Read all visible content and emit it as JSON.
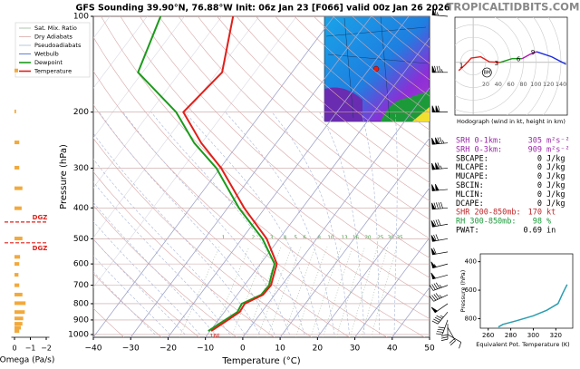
{
  "header": {
    "title": "GFS Sounding 39.90°N, 76.88°W Init: 06z Jan 23 [F066] valid 00z Jan 26 2026",
    "site": "TROPICALTIDBITS.COM"
  },
  "chart_data": [
    {
      "type": "skewt",
      "xlabel": "Temperature (°C)",
      "ylabel": "Pressure (hPa)",
      "xlim": [
        -40,
        50
      ],
      "ylim": [
        1020,
        100
      ],
      "xticks": [
        {
          "value": -40,
          "label": "−40"
        },
        {
          "value": -30,
          "label": "−30"
        },
        {
          "value": -20,
          "label": "−20"
        },
        {
          "value": -10,
          "label": "−10"
        },
        0,
        10,
        20,
        30,
        40,
        50
      ],
      "yticks": [
        100,
        200,
        300,
        400,
        500,
        600,
        700,
        800,
        900,
        1000
      ],
      "pressure": [
        975,
        925,
        850,
        800,
        750,
        700,
        650,
        600,
        500,
        400,
        300,
        250,
        200,
        150,
        100
      ],
      "series": [
        {
          "name": "Dewpoint",
          "color": "#1a9a1a",
          "values": [
            -10.5,
            -9,
            -6.5,
            -7,
            -3.6,
            -3.4,
            -4.8,
            -6.2,
            -14.5,
            -27,
            -41,
            -52,
            -63,
            -81.2,
            -86.4
          ]
        },
        {
          "name": "Temperature",
          "color": "#e0201a",
          "values": [
            -9.7,
            -8.2,
            -5.9,
            -6.2,
            -3.1,
            -2.9,
            -4.2,
            -5.6,
            -13.4,
            -25.6,
            -39.7,
            -50.1,
            -61.1,
            -58.7,
            -67
          ]
        }
      ],
      "background_lines": [
        {
          "name": "Sat. Mix. Ratio",
          "color": "#9bb89b"
        },
        {
          "name": "Dry Adiabats",
          "color": "#d8a8a8"
        },
        {
          "name": "Pseudoadiabats",
          "color": "#a9b7d8"
        },
        {
          "name": "Wetbulb",
          "color": "#3a5fcd"
        }
      ],
      "mix_ratios": [
        1,
        2,
        3,
        4,
        5,
        6,
        8,
        10,
        13,
        16,
        20,
        25,
        30,
        35
      ],
      "surface_label": "16F",
      "wind": {
        "pressure": [
          1000,
          950,
          925,
          900,
          850,
          800,
          750,
          700,
          650,
          600,
          550,
          500,
          450,
          400,
          350,
          300,
          250,
          200,
          150,
          100
        ],
        "speed": [
          10,
          20,
          30,
          40,
          45,
          50,
          45,
          45,
          50,
          55,
          60,
          70,
          80,
          90,
          100,
          115,
          125,
          110,
          85,
          65
        ],
        "direction": [
          120,
          150,
          180,
          200,
          220,
          235,
          245,
          250,
          255,
          255,
          260,
          260,
          260,
          265,
          265,
          265,
          265,
          270,
          270,
          275
        ]
      }
    },
    {
      "type": "omega",
      "xlabel": "Omega (Pa/s)",
      "xlim": [
        0.2,
        -2.2
      ],
      "xticks": [
        0,
        {
          "value": -1,
          "label": "−1"
        },
        {
          "value": -2,
          "label": "−2"
        }
      ],
      "color": "#f2a93b",
      "pressure": [
        148,
        199,
        249,
        299,
        347,
        401,
        499,
        570,
        600,
        649,
        700,
        749,
        797,
        850,
        890,
        925,
        952,
        975
      ],
      "values": [
        -0.23,
        -0.1,
        -0.3,
        -0.3,
        -0.5,
        -0.45,
        -0.5,
        -0.35,
        -0.3,
        -0.25,
        -0.3,
        -0.5,
        -0.7,
        -0.65,
        -0.55,
        -0.5,
        -0.4,
        -0.3
      ],
      "dgz": {
        "label": "DGZ",
        "pressure": [
          443,
          515
        ],
        "color": "#e0201a"
      }
    },
    {
      "type": "hodograph",
      "title": "Hodograph (wind in kt, height in km)",
      "xlim": [
        -29,
        150
      ],
      "ylim": [
        -84,
        72
      ],
      "xticks": [
        20,
        40,
        60,
        80,
        100,
        120,
        140
      ],
      "segments": [
        {
          "color": "#e0201a",
          "u": [
            -23,
            -13,
            -3,
            12,
            26,
            43
          ],
          "v": [
            -13,
            -4,
            7,
            9,
            1,
            0
          ]
        },
        {
          "color": "#1a9a1a",
          "u": [
            43,
            62,
            78
          ],
          "v": [
            0,
            6,
            6
          ]
        },
        {
          "color": "#b01ab0",
          "u": [
            78,
            91,
            101
          ],
          "v": [
            6,
            13,
            17
          ]
        },
        {
          "color": "#1a2ae0",
          "u": [
            101,
            125,
            148
          ],
          "v": [
            17,
            9,
            -3
          ]
        }
      ],
      "height_labels": [
        {
          "text": "1",
          "u": -13,
          "v": -4
        },
        {
          "text": "3",
          "u": 43,
          "v": 0
        },
        {
          "text": "6",
          "u": 78,
          "v": 6
        },
        {
          "text": "9",
          "u": 101,
          "v": 17
        }
      ],
      "storm_motion": {
        "label": "BM",
        "u": 22,
        "v": -16
      }
    },
    {
      "type": "line",
      "xlabel": "Equivalent Pot. Temperature (K)",
      "ylabel": "Pressure (hPa)",
      "xlim": [
        253,
        335
      ],
      "ylim": [
        867,
        345
      ],
      "xticks": [
        260,
        280,
        300,
        320
      ],
      "yticks": [
        400,
        600,
        800
      ],
      "color": "#2a9db0",
      "pressure": [
        859,
        840,
        815,
        780,
        741,
        694,
        624,
        560
      ],
      "values": [
        269,
        273,
        285,
        300,
        312,
        322,
        326,
        330
      ]
    }
  ],
  "stats": [
    {
      "label": "SRH 0-1km:",
      "value": 305,
      "unit": "m²s⁻²",
      "color": "#9b27a8"
    },
    {
      "label": "SRH 0-3km:",
      "value": 909,
      "unit": "m²s⁻²",
      "color": "#9b27a8"
    },
    {
      "label": "SBCAPE:",
      "value": 0,
      "unit": "J/kg",
      "color": "#000000"
    },
    {
      "label": "MLCAPE:",
      "value": 0,
      "unit": "J/kg",
      "color": "#000000"
    },
    {
      "label": "MUCAPE:",
      "value": 0,
      "unit": "J/kg",
      "color": "#000000"
    },
    {
      "label": "SBCIN:",
      "value": 0,
      "unit": "J/kg",
      "color": "#000000"
    },
    {
      "label": "MLCIN:",
      "value": 0,
      "unit": "J/kg",
      "color": "#000000"
    },
    {
      "label": "DCAPE:",
      "value": 0,
      "unit": "J/kg",
      "color": "#000000"
    },
    {
      "label": "SHR 200-850mb:",
      "value": 170,
      "unit": "kt",
      "color": "#c0262a"
    },
    {
      "label": "RH 300-850mb:",
      "value": 98,
      "unit": "%",
      "color": "#1a9a3a"
    },
    {
      "label": "PWAT:",
      "value": 0.69,
      "unit": "in",
      "color": "#000000"
    }
  ]
}
